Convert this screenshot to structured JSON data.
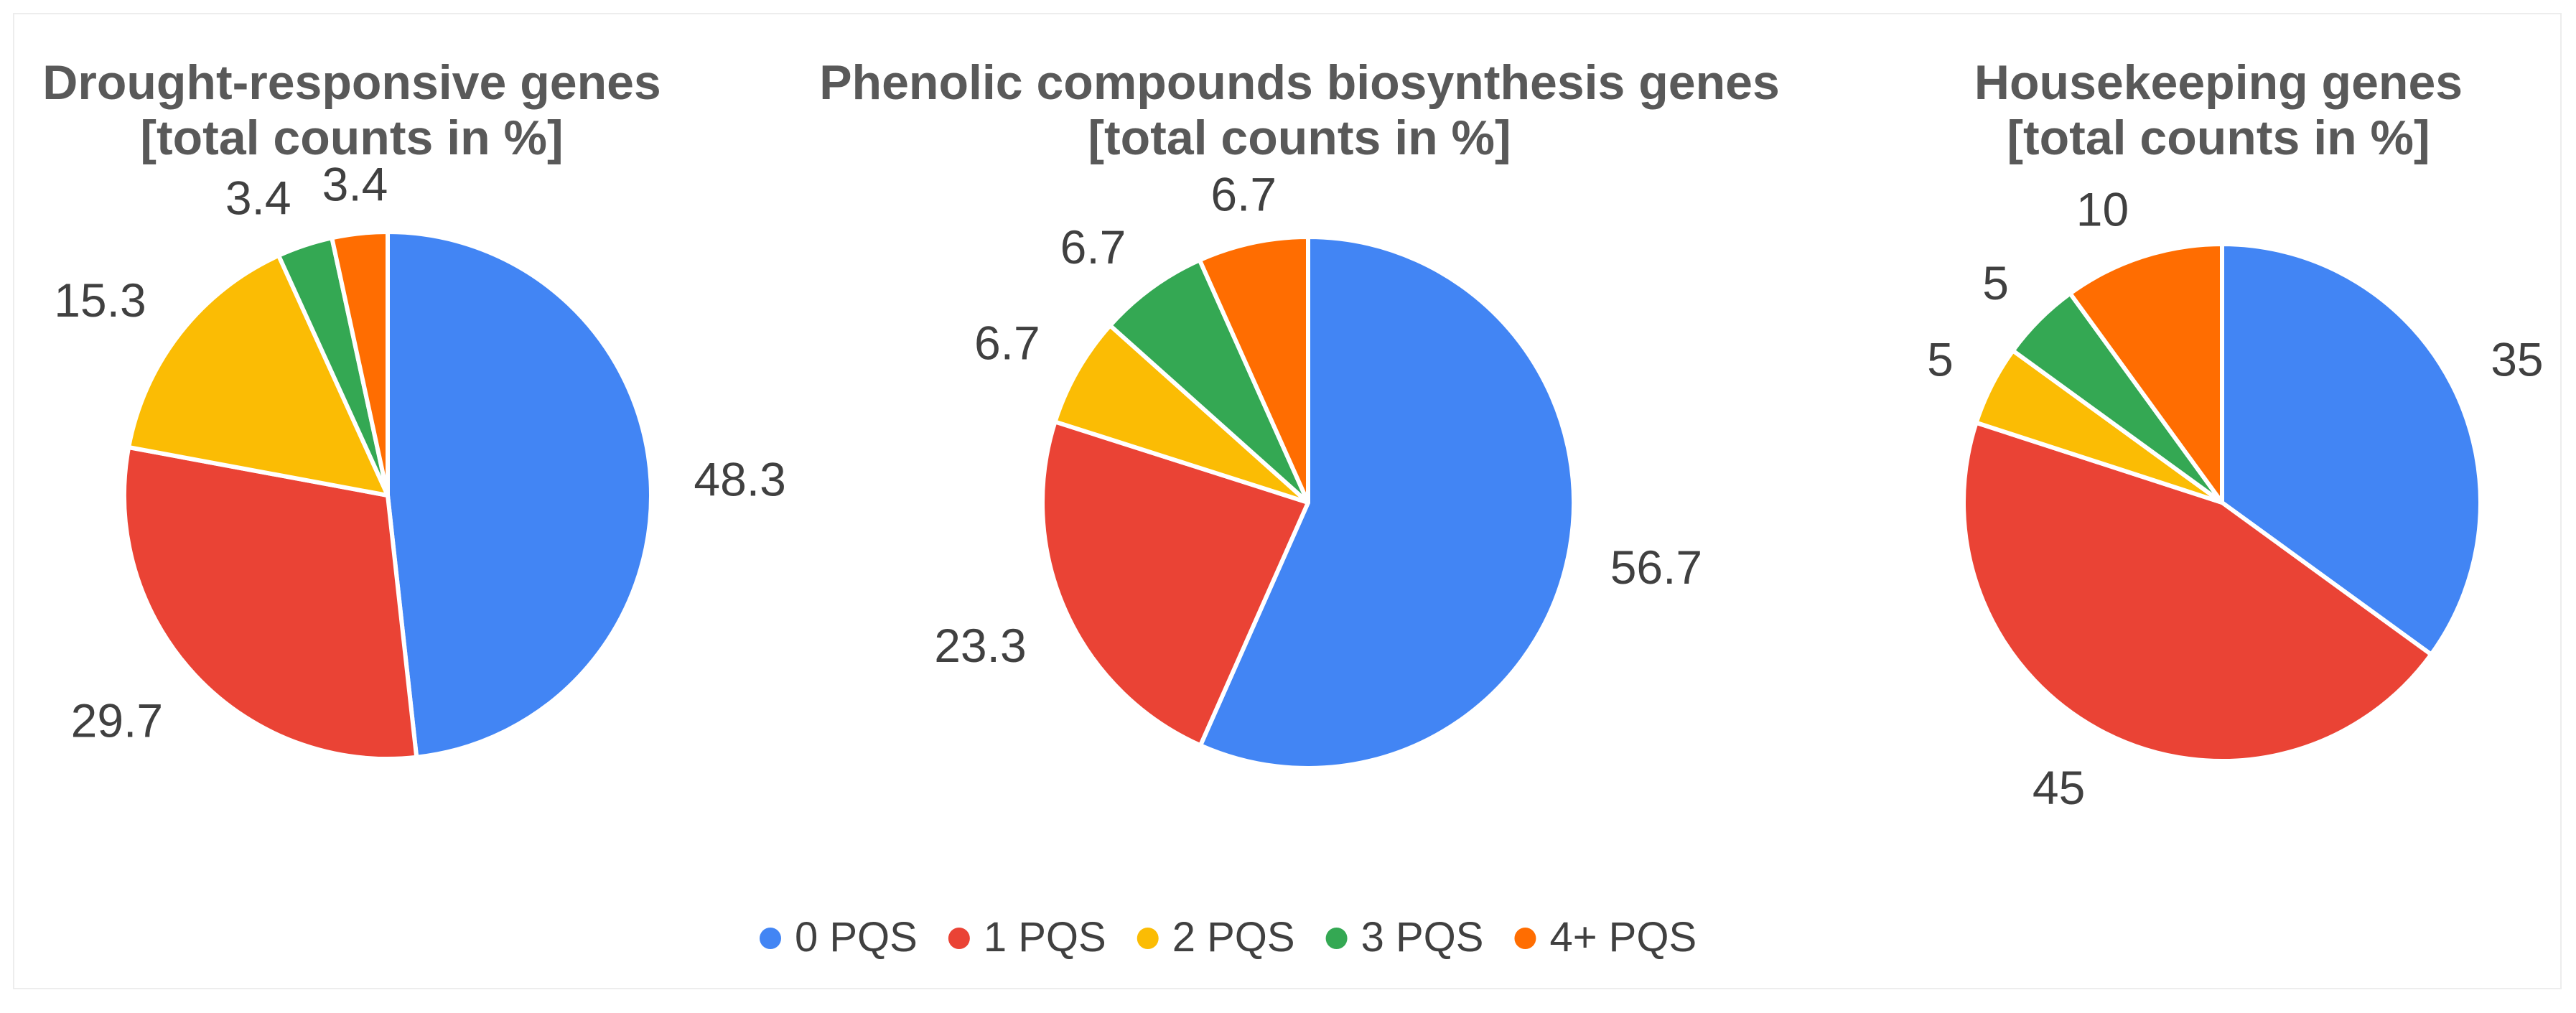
{
  "categories": [
    "0 PQS",
    "1 PQS",
    "2 PQS",
    "3 PQS",
    "4+ PQS"
  ],
  "colors": [
    "#4285F4",
    "#EA4335",
    "#FBBC04",
    "#34A853",
    "#FF6D01"
  ],
  "legend": {
    "position": "bottom",
    "items": [
      "0 PQS",
      "1 PQS",
      "2 PQS",
      "3 PQS",
      "4+ PQS"
    ]
  },
  "chart_data": [
    {
      "type": "pie",
      "title": "Drought-responsive genes",
      "subtitle": "[total counts in %]",
      "categories": [
        "0 PQS",
        "1 PQS",
        "2 PQS",
        "3 PQS",
        "4+ PQS"
      ],
      "values": [
        48.3,
        29.7,
        15.3,
        3.4,
        3.4
      ],
      "labels": [
        "48.3",
        "29.7",
        "15.3",
        "3.4",
        "3.4"
      ]
    },
    {
      "type": "pie",
      "title": "Phenolic compounds biosynthesis genes",
      "subtitle": "[total counts in %]",
      "categories": [
        "0 PQS",
        "1 PQS",
        "2 PQS",
        "3 PQS",
        "4+ PQS"
      ],
      "values": [
        56.7,
        23.3,
        6.7,
        6.7,
        6.7
      ],
      "labels": [
        "56.7",
        "23.3",
        "6.7",
        "6.7",
        "6.7"
      ]
    },
    {
      "type": "pie",
      "title": "Housekeeping genes",
      "subtitle": "[total counts in %]",
      "categories": [
        "0 PQS",
        "1 PQS",
        "2 PQS",
        "3 PQS",
        "4+ PQS"
      ],
      "values": [
        35,
        45,
        5,
        5,
        10
      ],
      "labels": [
        "35",
        "45",
        "5",
        "5",
        "10"
      ]
    }
  ]
}
